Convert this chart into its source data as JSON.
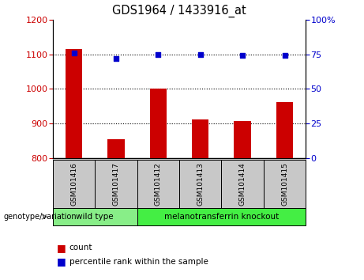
{
  "title": "GDS1964 / 1433916_at",
  "samples": [
    "GSM101416",
    "GSM101417",
    "GSM101412",
    "GSM101413",
    "GSM101414",
    "GSM101415"
  ],
  "counts": [
    1115,
    855,
    1000,
    912,
    908,
    963
  ],
  "percentile_ranks": [
    76,
    72,
    75,
    75,
    74,
    74
  ],
  "ylim_left": [
    800,
    1200
  ],
  "ylim_right": [
    0,
    100
  ],
  "yticks_left": [
    800,
    900,
    1000,
    1100,
    1200
  ],
  "yticks_right": [
    0,
    25,
    50,
    75,
    100
  ],
  "ytick_right_labels": [
    "0",
    "25",
    "50",
    "75",
    "100%"
  ],
  "bar_color": "#cc0000",
  "dot_color": "#0000cc",
  "grid_color": "#000000",
  "groups": [
    {
      "label": "wild type",
      "indices": [
        0,
        1
      ],
      "color": "#88ee88"
    },
    {
      "label": "melanotransferrin knockout",
      "indices": [
        2,
        3,
        4,
        5
      ],
      "color": "#44ee44"
    }
  ],
  "group_label_prefix": "genotype/variation",
  "legend_count_label": "count",
  "legend_percentile_label": "percentile rank within the sample",
  "bar_width": 0.4,
  "tick_label_color_left": "#cc0000",
  "tick_label_color_right": "#0000cc",
  "bg_color": "#ffffff",
  "plot_bg_color": "#ffffff",
  "x_label_area_color": "#c8c8c8",
  "group_area_color_wt": "#99ee99",
  "group_area_color_ko": "#55ee55"
}
